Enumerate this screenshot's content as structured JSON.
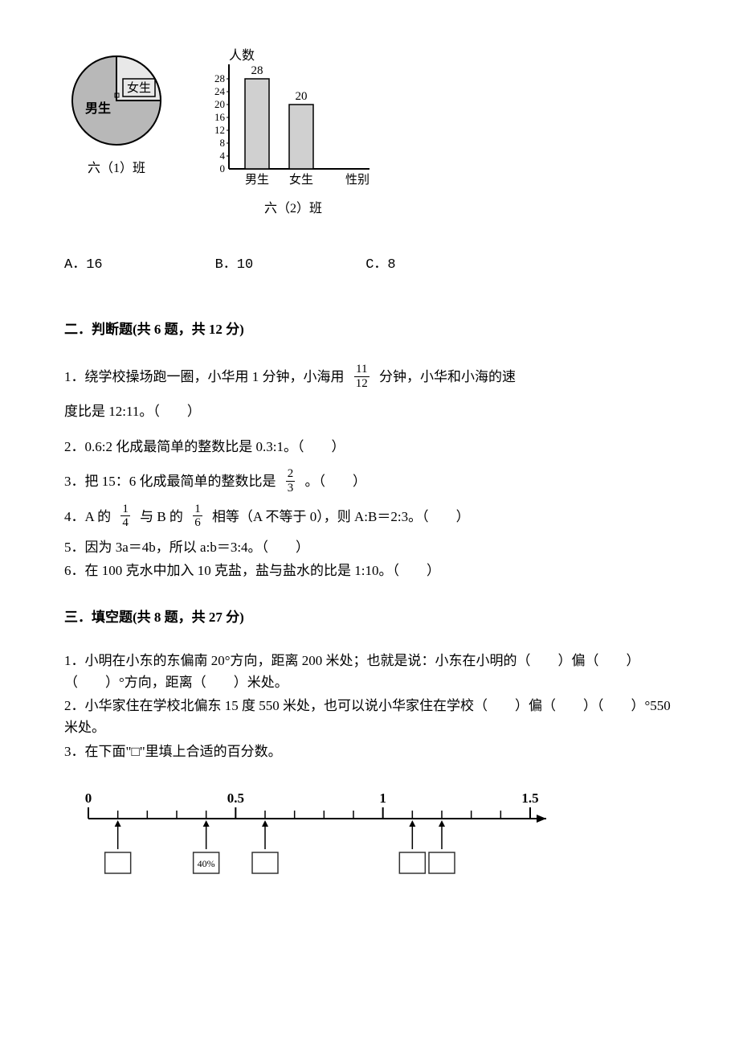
{
  "pie": {
    "label_boy": "男生",
    "label_girl": "女生",
    "caption": "六（1）班",
    "fill_color": "#b8b8b8",
    "stroke_color": "#000000",
    "girl_angle": 90
  },
  "bar": {
    "y_title": "人数",
    "x_title": "性别",
    "caption": "六（2）班",
    "categories": [
      "男生",
      "女生"
    ],
    "values": [
      28,
      20
    ],
    "value_labels": [
      "28",
      "20"
    ],
    "y_ticks": [
      "0",
      "4",
      "8",
      "12",
      "16",
      "20",
      "24",
      "28"
    ],
    "bar_fill": "#d0d0d0",
    "axis_color": "#000000",
    "label_fontsize": 14
  },
  "options": {
    "a": "A．16",
    "b": "B．10",
    "c": "C．8"
  },
  "section2": {
    "title": "二．判断题(共 6 题，共 12 分)",
    "q1a": "1．绕学校操场跑一圈，小华用 1 分钟，小海用",
    "q1_frac_num": "11",
    "q1_frac_den": "12",
    "q1b": "分钟，小华和小海的速",
    "q1c": "度比是 12:11。（　　）",
    "q2": "2．0.6:2 化成最简单的整数比是 0.3:1。（　　）",
    "q3a": "3．把 15：6 化成最简单的整数比是",
    "q3_frac_num": "2",
    "q3_frac_den": "3",
    "q3b": "。（　　）",
    "q4a": "4．A 的",
    "q4_frac1_num": "1",
    "q4_frac1_den": "4",
    "q4b": "与 B 的",
    "q4_frac2_num": "1",
    "q4_frac2_den": "6",
    "q4c": "相等（A 不等于 0），则 A:B＝2:3。（　　）",
    "q5": "5．因为 3a＝4b，所以 a:b＝3:4。（　　）",
    "q6": "6．在 100 克水中加入 10 克盐，盐与盐水的比是 1:10。（　　）"
  },
  "section3": {
    "title": "三．填空题(共 8 题，共 27 分)",
    "q1": "1．小明在小东的东偏南 20°方向，距离 200 米处；也就是说：小东在小明的（　　）偏（　　）（　　）°方向，距离（　　）米处。",
    "q2": "2．小华家住在学校北偏东 15 度 550 米处，也可以说小华家住在学校（　　）偏（　　）（　　）°550 米处。",
    "q3": "3．在下面\"□\"里填上合适的百分数。"
  },
  "number_line": {
    "labels": [
      "0",
      "0.5",
      "1",
      "1.5"
    ],
    "label_positions": [
      0,
      5,
      10,
      15
    ],
    "total_ticks": 16,
    "arrow_positions": [
      1,
      4,
      6,
      11,
      12
    ],
    "box_positions": [
      1,
      4,
      6,
      11,
      12
    ],
    "box_filled_index": 1,
    "box_filled_text": "40%",
    "line_color": "#000000",
    "tick_height": 10
  }
}
